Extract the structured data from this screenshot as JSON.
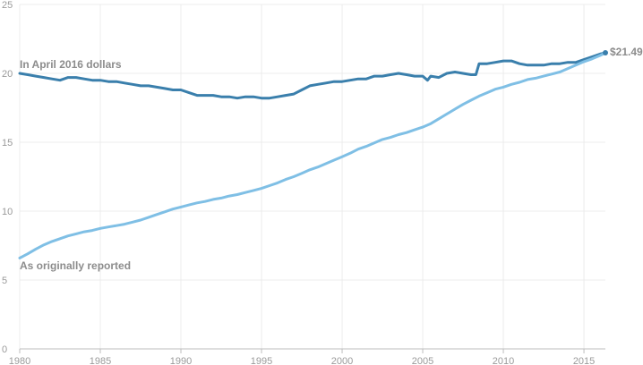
{
  "chart_data": {
    "type": "line",
    "title": "",
    "xlabel": "",
    "ylabel": "",
    "xlim": [
      1980,
      2016.33
    ],
    "ylim": [
      0,
      25
    ],
    "grid": true,
    "x_ticks": [
      "1980",
      "1985",
      "1990",
      "1995",
      "2000",
      "2005",
      "2010",
      "2015"
    ],
    "y_ticks": [
      "0",
      "5",
      "10",
      "15",
      "20",
      "25"
    ],
    "series": [
      {
        "name": "In April 2016 dollars",
        "color": "#3a7fac",
        "x": [
          1980,
          1980.5,
          1981,
          1981.5,
          1982,
          1982.5,
          1983,
          1983.5,
          1984,
          1984.5,
          1985,
          1985.5,
          1986,
          1986.5,
          1987,
          1987.5,
          1988,
          1988.5,
          1989,
          1989.5,
          1990,
          1990.5,
          1991,
          1991.5,
          1992,
          1992.5,
          1993,
          1993.5,
          1994,
          1994.5,
          1995,
          1995.5,
          1996,
          1996.5,
          1997,
          1997.5,
          1998,
          1998.5,
          1999,
          1999.5,
          2000,
          2000.5,
          2001,
          2001.5,
          2002,
          2002.5,
          2003,
          2003.5,
          2004,
          2004.5,
          2005,
          2005.3,
          2005.5,
          2006,
          2006.5,
          2007,
          2007.5,
          2008,
          2008.3,
          2008.5,
          2009,
          2009.5,
          2010,
          2010.5,
          2011,
          2011.5,
          2012,
          2012.5,
          2013,
          2013.5,
          2014,
          2014.5,
          2015,
          2015.5,
          2016,
          2016.33
        ],
        "values": [
          20.0,
          19.9,
          19.8,
          19.7,
          19.6,
          19.5,
          19.7,
          19.7,
          19.6,
          19.5,
          19.5,
          19.4,
          19.4,
          19.3,
          19.2,
          19.1,
          19.1,
          19.0,
          18.9,
          18.8,
          18.8,
          18.6,
          18.4,
          18.4,
          18.4,
          18.3,
          18.3,
          18.2,
          18.3,
          18.3,
          18.2,
          18.2,
          18.3,
          18.4,
          18.5,
          18.8,
          19.1,
          19.2,
          19.3,
          19.4,
          19.4,
          19.5,
          19.6,
          19.6,
          19.8,
          19.8,
          19.9,
          20.0,
          19.9,
          19.8,
          19.8,
          19.5,
          19.8,
          19.7,
          20.0,
          20.1,
          20.0,
          19.9,
          19.9,
          20.7,
          20.7,
          20.8,
          20.9,
          20.9,
          20.7,
          20.6,
          20.6,
          20.6,
          20.7,
          20.7,
          20.8,
          20.8,
          21.0,
          21.2,
          21.4,
          21.49
        ]
      },
      {
        "name": "As originally reported",
        "color": "#7fbfe5",
        "x": [
          1980,
          1980.5,
          1981,
          1981.5,
          1982,
          1982.5,
          1983,
          1983.5,
          1984,
          1984.5,
          1985,
          1985.5,
          1986,
          1986.5,
          1987,
          1987.5,
          1988,
          1988.5,
          1989,
          1989.5,
          1990,
          1990.5,
          1991,
          1991.5,
          1992,
          1992.5,
          1993,
          1993.5,
          1994,
          1994.5,
          1995,
          1995.5,
          1996,
          1996.5,
          1997,
          1997.5,
          1998,
          1998.5,
          1999,
          1999.5,
          2000,
          2000.5,
          2001,
          2001.5,
          2002,
          2002.5,
          2003,
          2003.5,
          2004,
          2004.5,
          2005,
          2005.5,
          2006,
          2006.5,
          2007,
          2007.5,
          2008,
          2008.5,
          2009,
          2009.5,
          2010,
          2010.5,
          2011,
          2011.5,
          2012,
          2012.5,
          2013,
          2013.5,
          2014,
          2014.5,
          2015,
          2015.5,
          2016,
          2016.33
        ],
        "values": [
          6.6,
          6.9,
          7.25,
          7.55,
          7.8,
          8.0,
          8.2,
          8.35,
          8.5,
          8.6,
          8.75,
          8.85,
          8.95,
          9.05,
          9.2,
          9.35,
          9.55,
          9.75,
          9.95,
          10.15,
          10.3,
          10.45,
          10.6,
          10.7,
          10.85,
          10.95,
          11.1,
          11.2,
          11.35,
          11.5,
          11.65,
          11.85,
          12.05,
          12.3,
          12.5,
          12.75,
          13.0,
          13.2,
          13.45,
          13.7,
          13.95,
          14.2,
          14.5,
          14.7,
          14.95,
          15.2,
          15.35,
          15.55,
          15.7,
          15.9,
          16.1,
          16.35,
          16.7,
          17.05,
          17.4,
          17.75,
          18.05,
          18.35,
          18.6,
          18.85,
          19.0,
          19.2,
          19.35,
          19.55,
          19.65,
          19.8,
          19.95,
          20.1,
          20.35,
          20.6,
          20.85,
          21.05,
          21.3,
          21.49
        ]
      }
    ],
    "annotations": [
      {
        "text": "In April 2016 dollars"
      },
      {
        "text": "As originally reported"
      },
      {
        "text": "$21.49"
      }
    ]
  }
}
